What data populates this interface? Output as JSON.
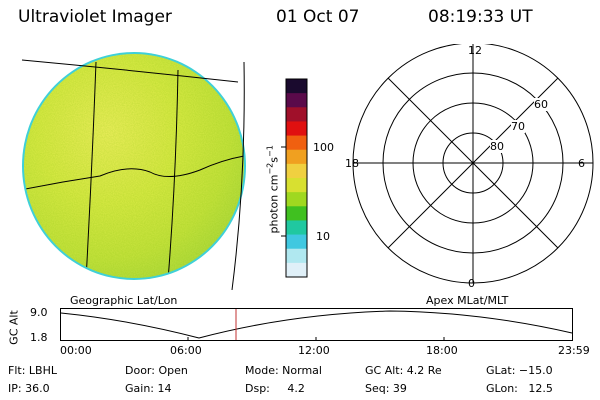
{
  "header": {
    "instrument": "Ultraviolet Imager",
    "date": "01 Oct 07",
    "time": "08:19:33 UT"
  },
  "colorbar": {
    "unit_label": "photon cm",
    "unit_exp1": "−2",
    "unit_s": "s",
    "unit_exp2": "−1",
    "tick_100": "100",
    "tick_10": "10",
    "colors": [
      "#1a0a2e",
      "#5a0a4a",
      "#a0102a",
      "#e01010",
      "#f06010",
      "#f0a020",
      "#f0d040",
      "#d8e030",
      "#a0d820",
      "#40c020",
      "#20c8a0",
      "#40c8e0",
      "#b0e8f0",
      "#e0f0f8"
    ]
  },
  "left_panel": {
    "caption": "Geographic Lat/Lon",
    "disk_base_color": "#d6e84a",
    "disk_edge_color": "#3fd0d8"
  },
  "polar_plot": {
    "caption": "Apex MLat/MLT",
    "mlt_12": "12",
    "mlt_6": "6",
    "mlt_18": "18",
    "mlt_0": "0",
    "lat_60": "60",
    "lat_70": "70",
    "lat_80": "80"
  },
  "altitude_strip": {
    "axis_label": "GC Alt",
    "y_top": "9.0",
    "y_bottom": "1.8",
    "ticks": [
      "00:00",
      "06:00",
      "12:00",
      "18:00",
      "23:59"
    ],
    "marker_color": "#c03030"
  },
  "info": {
    "flt": "Flt: LBHL",
    "ip": "IP: 36.0",
    "door": "Door: Open",
    "gain": "Gain: 14",
    "mode": "Mode: Normal",
    "dsp": "Dsp:     4.2",
    "gcalt": "GC Alt: 4.2 Re",
    "seq": "Seq: 39",
    "glat": "GLat: −15.0",
    "glon": "GLon:   12.5"
  }
}
